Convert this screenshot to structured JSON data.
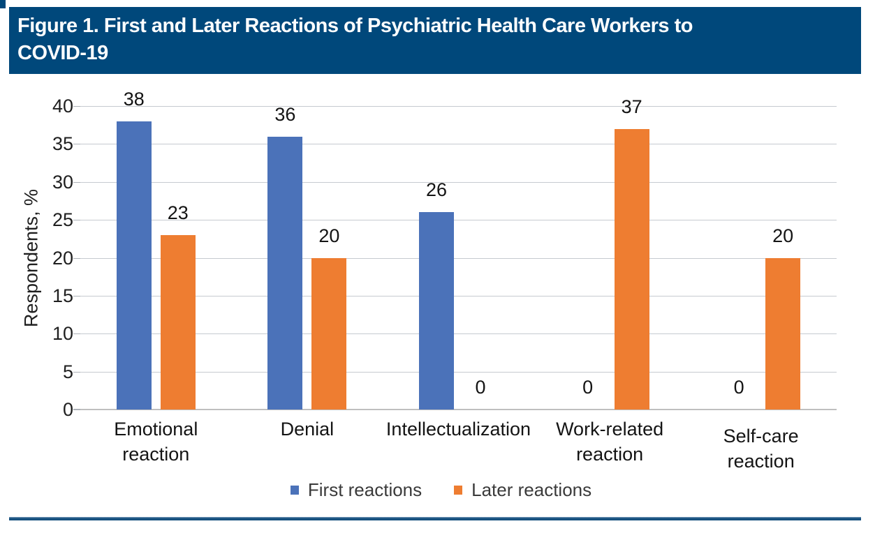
{
  "figure": {
    "title": "Figure 1. First and Later Reactions of Psychiatric Health Care Workers to\nCOVID-19"
  },
  "chart_data": {
    "type": "bar",
    "title": "Figure 1. First and Later Reactions of Psychiatric Health Care Workers to COVID-19",
    "categories": [
      "Emotional\nreaction",
      "Denial",
      "Intellectualization",
      "Work-related\nreaction",
      "Self-care\nreaction"
    ],
    "series": [
      {
        "name": "First reactions",
        "color": "#4B72B9",
        "values": [
          38,
          36,
          26,
          0,
          0
        ]
      },
      {
        "name": "Later reactions",
        "color": "#EE7D31",
        "values": [
          23,
          20,
          0,
          37,
          20
        ]
      }
    ],
    "xlabel": "",
    "ylabel": "Respondents, %",
    "ylim": [
      0,
      40
    ],
    "yticks": [
      0,
      5,
      10,
      15,
      20,
      25,
      30,
      35,
      40
    ],
    "grid": true,
    "data_labels": true,
    "legend_position": "bottom",
    "category_label_offsets": [
      0,
      0,
      0,
      0,
      10
    ]
  },
  "colors": {
    "banner_blue": "#00487B",
    "bar_blue": "#4B72B9",
    "bar_orange": "#EE7D31",
    "gridline_gray": "#C6CAD0",
    "text_dark": "#141414",
    "legend_text": "#3a3a3a"
  }
}
